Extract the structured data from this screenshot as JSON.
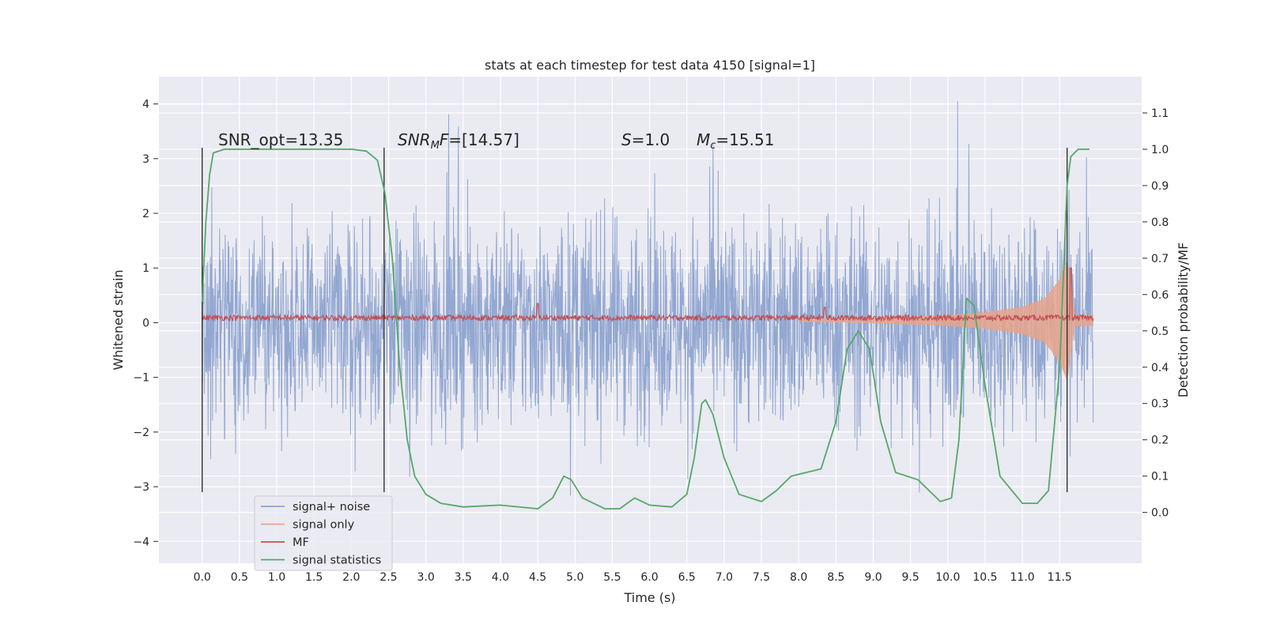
{
  "chart_data": {
    "type": "line",
    "title": "stats at each timestep for test data 4150 [signal=1]",
    "xlabel": "Time (s)",
    "ylabel": "Whitened strain",
    "y2label": "Detection probability/MF",
    "xlim": [
      -0.58,
      12.6
    ],
    "ylim": [
      -4.4,
      4.5
    ],
    "y2lim": [
      -0.14,
      1.2
    ],
    "x_ticks": [
      "0.0",
      "0.5",
      "1.0",
      "1.5",
      "2.0",
      "2.5",
      "3.0",
      "3.5",
      "4.0",
      "4.5",
      "5.0",
      "5.5",
      "6.0",
      "6.5",
      "7.0",
      "7.5",
      "8.0",
      "8.5",
      "9.0",
      "9.5",
      "10.0",
      "10.5",
      "11.0",
      "11.5"
    ],
    "y_ticks": [
      "−4",
      "−3",
      "−2",
      "−1",
      "0",
      "1",
      "2",
      "3",
      "4"
    ],
    "y2_ticks": [
      "0.0",
      "0.1",
      "0.2",
      "0.3",
      "0.4",
      "0.5",
      "0.6",
      "0.7",
      "0.8",
      "0.9",
      "1.0",
      "1.1"
    ],
    "grid": true,
    "legend_position": "lower-left",
    "annotations": {
      "snr_opt": "SNR_opt=13.35",
      "snr_mf_name": "SNR",
      "snr_mf_sub": "M",
      "snr_mf_tail": "F",
      "snr_mf_value": "=[14.57]",
      "s_name": "S",
      "s_value": "=1.0",
      "mc_name": "M",
      "mc_sub": "c",
      "mc_value": "=15.51"
    },
    "vertical_markers_x": [
      0.0,
      2.44,
      11.6
    ],
    "series": [
      {
        "name": "signal+ noise",
        "color": "#8da3cf",
        "x_range": [
          0.0,
          11.95
        ],
        "envelope": "dense noise, mostly within ±2, peaks to about ±4"
      },
      {
        "name": "signal only",
        "color": "#e8a58b",
        "x_range": [
          8.0,
          11.95
        ],
        "envelope_points": [
          [
            8.0,
            0.02
          ],
          [
            9.0,
            0.05
          ],
          [
            10.0,
            0.1
          ],
          [
            10.5,
            0.15
          ],
          [
            11.0,
            0.25
          ],
          [
            11.3,
            0.4
          ],
          [
            11.5,
            0.75
          ],
          [
            11.6,
            1.1
          ],
          [
            11.65,
            0.6
          ],
          [
            11.7,
            0.1
          ]
        ]
      },
      {
        "name": "MF",
        "color": "#c44e52",
        "x_range": [
          0.0,
          11.95
        ],
        "baseline": 0.08,
        "spikes": [
          [
            4.5,
            0.35
          ],
          [
            8.35,
            0.28
          ],
          [
            11.65,
            1.0
          ]
        ]
      },
      {
        "name": "signal statistics",
        "color": "#55a868",
        "axis": "right",
        "points": [
          [
            0.0,
            0.58
          ],
          [
            0.05,
            0.8
          ],
          [
            0.1,
            0.93
          ],
          [
            0.15,
            0.99
          ],
          [
            0.3,
            1.0
          ],
          [
            1.0,
            1.0
          ],
          [
            2.0,
            1.0
          ],
          [
            2.2,
            0.995
          ],
          [
            2.35,
            0.97
          ],
          [
            2.45,
            0.88
          ],
          [
            2.55,
            0.7
          ],
          [
            2.65,
            0.4
          ],
          [
            2.75,
            0.2
          ],
          [
            2.85,
            0.1
          ],
          [
            3.0,
            0.05
          ],
          [
            3.2,
            0.025
          ],
          [
            3.5,
            0.015
          ],
          [
            4.0,
            0.02
          ],
          [
            4.5,
            0.01
          ],
          [
            4.7,
            0.04
          ],
          [
            4.85,
            0.1
          ],
          [
            4.95,
            0.09
          ],
          [
            5.1,
            0.04
          ],
          [
            5.4,
            0.01
          ],
          [
            5.6,
            0.01
          ],
          [
            5.8,
            0.04
          ],
          [
            6.0,
            0.02
          ],
          [
            6.3,
            0.015
          ],
          [
            6.5,
            0.05
          ],
          [
            6.6,
            0.15
          ],
          [
            6.7,
            0.3
          ],
          [
            6.75,
            0.31
          ],
          [
            6.85,
            0.27
          ],
          [
            7.0,
            0.15
          ],
          [
            7.2,
            0.05
          ],
          [
            7.5,
            0.03
          ],
          [
            7.7,
            0.06
          ],
          [
            7.9,
            0.1
          ],
          [
            8.1,
            0.11
          ],
          [
            8.3,
            0.12
          ],
          [
            8.5,
            0.25
          ],
          [
            8.65,
            0.45
          ],
          [
            8.8,
            0.5
          ],
          [
            8.95,
            0.45
          ],
          [
            9.1,
            0.25
          ],
          [
            9.3,
            0.11
          ],
          [
            9.6,
            0.09
          ],
          [
            9.9,
            0.03
          ],
          [
            10.05,
            0.04
          ],
          [
            10.15,
            0.2
          ],
          [
            10.25,
            0.59
          ],
          [
            10.35,
            0.57
          ],
          [
            10.5,
            0.35
          ],
          [
            10.7,
            0.1
          ],
          [
            11.0,
            0.025
          ],
          [
            11.2,
            0.025
          ],
          [
            11.35,
            0.06
          ],
          [
            11.5,
            0.4
          ],
          [
            11.6,
            0.9
          ],
          [
            11.65,
            0.98
          ],
          [
            11.75,
            1.0
          ],
          [
            11.9,
            1.0
          ]
        ]
      }
    ]
  }
}
